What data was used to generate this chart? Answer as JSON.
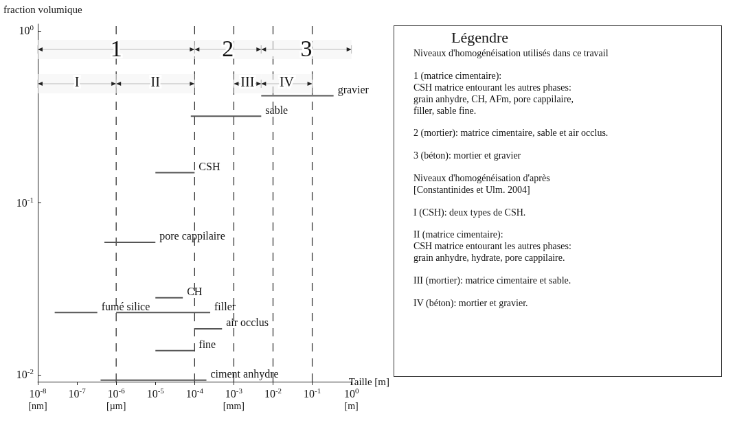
{
  "chart_data": {
    "type": "line",
    "xlabel": "Taille [m]",
    "ylabel": "fraction volumique",
    "log": "xy",
    "xlim": [
      1e-08,
      1
    ],
    "ylim": [
      0.0091,
      1.1
    ],
    "xticks": [
      {
        "value": 1e-08,
        "label": "10$^{-8}$\n$_{[nm]}$"
      },
      {
        "value": 1e-07,
        "label": "10$^{-7}$"
      },
      {
        "value": 1e-06,
        "label": "10$^{-6}$\n$_{[µm]}$"
      },
      {
        "value": 1e-05,
        "label": "10$^{-5}$"
      },
      {
        "value": 0.0001,
        "label": "10$^{-4}$"
      },
      {
        "value": 0.001,
        "label": "10$^{-3}$\n$_{[mm]}$"
      },
      {
        "value": 0.01,
        "label": "10$^{-2}$"
      },
      {
        "value": 0.1,
        "label": "10$^{-1}$"
      },
      {
        "value": 1,
        "label": "10$^{0}$\n$_{[m]}$"
      }
    ],
    "yticks": [
      {
        "value": 0.01,
        "label": "10$^{-2}$"
      },
      {
        "value": 0.1,
        "label": "10$^{-1}$"
      },
      {
        "value": 1,
        "label": "10$^{0}$"
      }
    ],
    "grid": false,
    "legend": false,
    "line_style": "solid",
    "series": [
      {
        "name": "gravier",
        "color": "#555555",
        "x": [
          0.005,
          0.35
        ],
        "values": [
          0.42,
          0.42
        ]
      },
      {
        "name": "sable",
        "color": "#555555",
        "x": [
          8e-05,
          0.005
        ],
        "values": [
          0.32,
          0.32
        ]
      },
      {
        "name": "CSH",
        "color": "#555555",
        "x": [
          1e-05,
          0.0001
        ],
        "values": [
          0.15,
          0.15
        ]
      },
      {
        "name": "pore cappilaire",
        "color": "#555555",
        "x": [
          5e-07,
          1e-05
        ],
        "values": [
          0.059,
          0.059
        ]
      },
      {
        "name": "CH",
        "color": "#555555",
        "x": [
          1e-05,
          5e-05
        ],
        "values": [
          0.028,
          0.028
        ]
      },
      {
        "name": "fumé silice",
        "color": "#555555",
        "x": [
          2.7e-08,
          3.3e-07
        ],
        "values": [
          0.023,
          0.023
        ]
      },
      {
        "name": "filler",
        "color": "#555555",
        "x": [
          1e-06,
          0.00025
        ],
        "values": [
          0.023,
          0.023
        ]
      },
      {
        "name": "air occlus",
        "color": "#555555",
        "x": [
          0.0001,
          0.0005
        ],
        "values": [
          0.0185,
          0.0185
        ]
      },
      {
        "name": "fine",
        "color": "#555555",
        "x": [
          1e-05,
          0.0001
        ],
        "values": [
          0.0138,
          0.0138
        ]
      },
      {
        "name": "ciment anhydre",
        "color": "#555555",
        "x": [
          4e-07,
          0.0002
        ],
        "values": [
          0.0093,
          0.0093
        ]
      }
    ],
    "ref_lines": [
      {
        "axis": "x",
        "value": 1e-06,
        "color": "#333333",
        "line_style": "dashed"
      },
      {
        "axis": "x",
        "value": 0.0001,
        "color": "#333333",
        "line_style": "dashed"
      },
      {
        "axis": "x",
        "value": 0.001,
        "color": "#333333",
        "line_style": "dashed"
      },
      {
        "axis": "x",
        "value": 0.01,
        "color": "#333333",
        "line_style": "dashed"
      },
      {
        "axis": "x",
        "value": 0.1,
        "color": "#333333",
        "line_style": "dashed"
      }
    ],
    "bands": [
      {
        "axis": "x",
        "from": 1e-08,
        "to": 0.0001,
        "label": "1"
      },
      {
        "axis": "x",
        "from": 0.0001,
        "to": 0.005,
        "label": "2"
      },
      {
        "axis": "x",
        "from": 0.005,
        "to": 1,
        "label": "3"
      },
      {
        "axis": "x",
        "from": 1e-08,
        "to": 1e-06,
        "label": "I"
      },
      {
        "axis": "x",
        "from": 1e-06,
        "to": 0.0001,
        "label": "II"
      },
      {
        "axis": "x",
        "from": 0.001,
        "to": 0.005,
        "label": "III"
      },
      {
        "axis": "x",
        "from": 0.005,
        "to": 0.1,
        "label": "IV"
      }
    ],
    "annotations": [
      "Légendre",
      "Niveaux d'homogénéisation utilisés dans ce travail",
      "1 (matrice cimentaire):\nCSH matrice entourant les autres phases:\ngrain anhydre, CH, AFm, pore cappilaire,\nfiller, sable fine.",
      "2 (mortier): matrice cimentaire, sable et air occlus.",
      "3 (béton): mortier et gravier",
      "Niveaux d'homogénéisation d'après\n[Constantinides et Ulm. 2004]",
      "I (CSH): deux types de CSH.",
      "II (matrice cimentaire):\nCSH matrice entourant les autres phases:\ngrain anhydre, hydrate, pore cappilaire.",
      "III (mortier): matrice cimentaire et sable.",
      "IV (béton): mortier et gravier."
    ]
  }
}
